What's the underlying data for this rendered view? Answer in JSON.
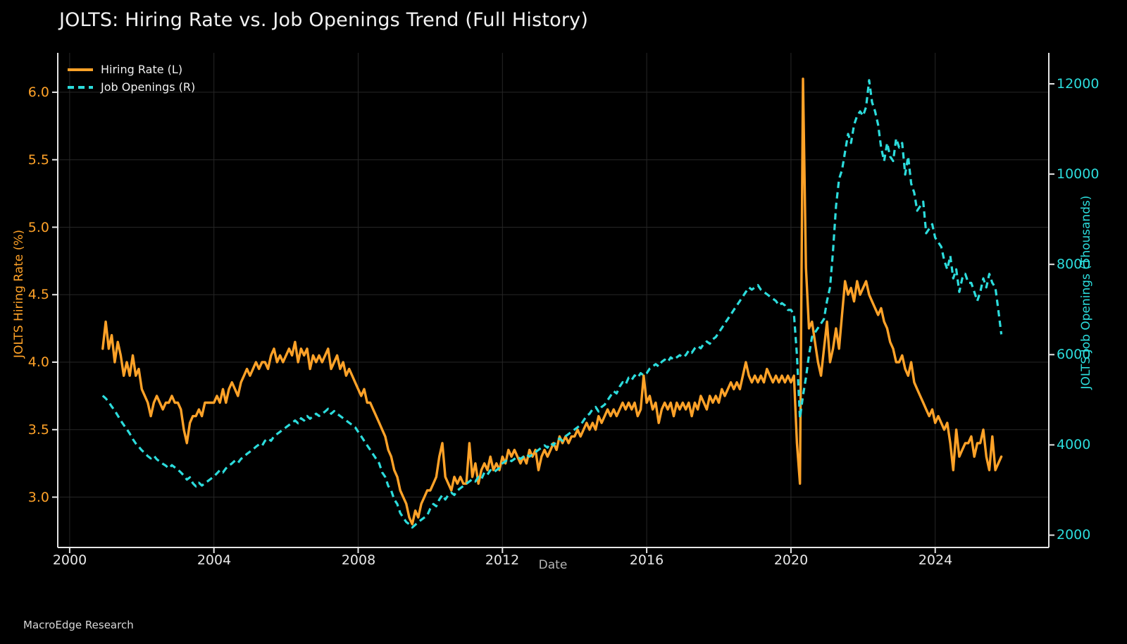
{
  "header": {
    "title": "JOLTS: Hiring Rate vs. Job Openings Trend (Full History)"
  },
  "footer": {
    "watermark": "MacroEdge Research"
  },
  "colors": {
    "background": "#000000",
    "hiring_rate": "#ffa228",
    "job_openings": "#2cdcdc",
    "grid": "#262626",
    "spine": "#e6e6e6",
    "title_text": "#f2f2f2",
    "x_tick_text": "#e8e8e8",
    "muted_text": "#b5b5b5"
  },
  "chart_data": {
    "type": "line",
    "title": "JOLTS: Hiring Rate vs. Job Openings Trend (Full History)",
    "xlabel": "Date",
    "grid": true,
    "legend_position": "upper-left",
    "x_range": [
      1999.67,
      2027.15
    ],
    "x_axis": {
      "label": "Date",
      "ticks": [
        {
          "label": "2000"
        },
        {
          "label": "2004"
        },
        {
          "label": "2008"
        },
        {
          "label": "2012"
        },
        {
          "label": "2016"
        },
        {
          "label": "2020"
        },
        {
          "label": "2024"
        }
      ],
      "tick_values": [
        2000,
        2004,
        2008,
        2012,
        2016,
        2020,
        2024
      ]
    },
    "left_axis": {
      "label": "JOLTS Hiring Rate (%)",
      "range": [
        2.627,
        6.292
      ],
      "ticks": [
        {
          "label": "6.0"
        },
        {
          "label": "5.5"
        },
        {
          "label": "5.0"
        },
        {
          "label": "4.5"
        },
        {
          "label": "4.0"
        },
        {
          "label": "3.5"
        },
        {
          "label": "3.0"
        }
      ],
      "tick_values": [
        6.0,
        5.5,
        5.0,
        4.5,
        4.0,
        3.5,
        3.0
      ]
    },
    "right_axis": {
      "label": "JOLTS Job Openings (Thousands)",
      "range": [
        1727,
        12687
      ],
      "ticks": [
        {
          "label": "12000"
        },
        {
          "label": "10000"
        },
        {
          "label": "8000"
        },
        {
          "label": "6000"
        },
        {
          "label": "4000"
        },
        {
          "label": "2000"
        }
      ],
      "tick_values": [
        12000,
        10000,
        8000,
        6000,
        4000,
        2000
      ]
    },
    "series": [
      {
        "name": "Hiring Rate (L)",
        "axis": "left",
        "style": "solid",
        "color": "#ffa228",
        "width": 3.4,
        "x_start": 2000.9167,
        "x_step_years": 0.0833333,
        "start_month": "2000-12",
        "values": [
          4.1,
          4.3,
          4.1,
          4.2,
          4.0,
          4.15,
          4.05,
          3.9,
          4.0,
          3.9,
          4.05,
          3.9,
          3.95,
          3.8,
          3.75,
          3.7,
          3.6,
          3.7,
          3.75,
          3.7,
          3.65,
          3.7,
          3.7,
          3.75,
          3.7,
          3.7,
          3.65,
          3.5,
          3.4,
          3.55,
          3.6,
          3.6,
          3.65,
          3.6,
          3.7,
          3.7,
          3.7,
          3.7,
          3.75,
          3.7,
          3.8,
          3.7,
          3.8,
          3.85,
          3.8,
          3.75,
          3.85,
          3.9,
          3.95,
          3.9,
          3.95,
          4.0,
          3.95,
          4.0,
          4.0,
          3.95,
          4.05,
          4.1,
          4.0,
          4.05,
          4.0,
          4.05,
          4.1,
          4.05,
          4.15,
          4.0,
          4.1,
          4.05,
          4.1,
          3.95,
          4.05,
          4.0,
          4.05,
          4.0,
          4.05,
          4.1,
          3.95,
          4.0,
          4.05,
          3.95,
          4.0,
          3.9,
          3.95,
          3.9,
          3.85,
          3.8,
          3.75,
          3.8,
          3.7,
          3.7,
          3.65,
          3.6,
          3.55,
          3.5,
          3.45,
          3.35,
          3.3,
          3.2,
          3.15,
          3.05,
          3.0,
          2.95,
          2.85,
          2.8,
          2.9,
          2.85,
          2.95,
          3.0,
          3.05,
          3.05,
          3.1,
          3.15,
          3.3,
          3.4,
          3.15,
          3.1,
          3.05,
          3.15,
          3.1,
          3.15,
          3.1,
          3.1,
          3.4,
          3.15,
          3.25,
          3.1,
          3.2,
          3.25,
          3.2,
          3.3,
          3.2,
          3.25,
          3.2,
          3.3,
          3.25,
          3.35,
          3.3,
          3.35,
          3.3,
          3.25,
          3.3,
          3.25,
          3.35,
          3.3,
          3.35,
          3.2,
          3.3,
          3.35,
          3.3,
          3.35,
          3.4,
          3.35,
          3.45,
          3.4,
          3.45,
          3.4,
          3.45,
          3.45,
          3.5,
          3.45,
          3.5,
          3.55,
          3.5,
          3.55,
          3.5,
          3.6,
          3.55,
          3.6,
          3.65,
          3.6,
          3.65,
          3.6,
          3.65,
          3.7,
          3.65,
          3.7,
          3.65,
          3.7,
          3.6,
          3.65,
          3.9,
          3.7,
          3.75,
          3.65,
          3.7,
          3.55,
          3.65,
          3.7,
          3.65,
          3.7,
          3.6,
          3.7,
          3.65,
          3.7,
          3.65,
          3.7,
          3.6,
          3.7,
          3.65,
          3.75,
          3.7,
          3.65,
          3.75,
          3.7,
          3.75,
          3.7,
          3.8,
          3.75,
          3.8,
          3.85,
          3.8,
          3.85,
          3.8,
          3.9,
          4.0,
          3.9,
          3.85,
          3.9,
          3.85,
          3.9,
          3.85,
          3.95,
          3.9,
          3.85,
          3.9,
          3.85,
          3.9,
          3.85,
          3.9,
          3.85,
          3.9,
          3.4,
          3.1,
          6.1,
          4.7,
          4.25,
          4.3,
          4.15,
          4.0,
          3.9,
          4.1,
          4.3,
          4.0,
          4.1,
          4.25,
          4.1,
          4.35,
          4.6,
          4.5,
          4.55,
          4.45,
          4.6,
          4.5,
          4.55,
          4.6,
          4.5,
          4.45,
          4.4,
          4.35,
          4.4,
          4.3,
          4.25,
          4.15,
          4.1,
          4.0,
          4.0,
          4.05,
          3.95,
          3.9,
          4.0,
          3.85,
          3.8,
          3.75,
          3.7,
          3.65,
          3.6,
          3.65,
          3.55,
          3.6,
          3.55,
          3.5,
          3.55,
          3.4,
          3.2,
          3.5,
          3.3,
          3.35,
          3.4,
          3.4,
          3.45,
          3.3,
          3.4,
          3.4,
          3.5,
          3.3,
          3.2,
          3.45,
          3.2,
          3.25,
          3.3
        ]
      },
      {
        "name": "Job Openings (R)",
        "axis": "right",
        "style": "dashed",
        "color": "#2cdcdc",
        "width": 3.2,
        "x_start": 2000.9167,
        "x_step_years": 0.0833333,
        "start_month": "2000-12",
        "values": [
          5090,
          5030,
          4950,
          4850,
          4760,
          4650,
          4540,
          4440,
          4350,
          4250,
          4130,
          4030,
          3960,
          3880,
          3820,
          3750,
          3700,
          3760,
          3680,
          3630,
          3580,
          3540,
          3480,
          3550,
          3500,
          3450,
          3390,
          3320,
          3230,
          3280,
          3150,
          3080,
          3160,
          3100,
          3150,
          3200,
          3250,
          3300,
          3370,
          3440,
          3390,
          3480,
          3540,
          3590,
          3650,
          3600,
          3690,
          3740,
          3800,
          3850,
          3900,
          3960,
          4010,
          3980,
          4090,
          4140,
          4090,
          4190,
          4240,
          4290,
          4340,
          4390,
          4440,
          4490,
          4540,
          4480,
          4590,
          4540,
          4640,
          4580,
          4640,
          4690,
          4640,
          4690,
          4740,
          4800,
          4690,
          4750,
          4690,
          4640,
          4590,
          4540,
          4490,
          4440,
          4390,
          4290,
          4190,
          4090,
          3990,
          3890,
          3790,
          3690,
          3590,
          3390,
          3290,
          3090,
          2990,
          2790,
          2690,
          2490,
          2390,
          2290,
          2240,
          2170,
          2230,
          2290,
          2340,
          2390,
          2440,
          2590,
          2690,
          2640,
          2790,
          2890,
          2790,
          2890,
          2940,
          2890,
          2990,
          3040,
          3090,
          3140,
          3190,
          3240,
          3190,
          3290,
          3240,
          3390,
          3340,
          3440,
          3390,
          3440,
          3490,
          3590,
          3640,
          3690,
          3640,
          3690,
          3740,
          3690,
          3740,
          3790,
          3740,
          3790,
          3840,
          3890,
          3940,
          3990,
          3940,
          4040,
          3990,
          4090,
          4140,
          4090,
          4190,
          4240,
          4290,
          4340,
          4390,
          4440,
          4540,
          4640,
          4690,
          4790,
          4840,
          4740,
          4840,
          4890,
          4990,
          5090,
          5190,
          5140,
          5290,
          5390,
          5340,
          5490,
          5440,
          5540,
          5490,
          5590,
          5540,
          5590,
          5690,
          5740,
          5790,
          5740,
          5840,
          5890,
          5840,
          5940,
          5890,
          5940,
          5990,
          5940,
          5990,
          6090,
          6040,
          6140,
          6190,
          6140,
          6240,
          6290,
          6240,
          6340,
          6390,
          6490,
          6590,
          6690,
          6790,
          6890,
          6990,
          7090,
          7190,
          7290,
          7390,
          7490,
          7440,
          7490,
          7540,
          7440,
          7390,
          7340,
          7290,
          7240,
          7190,
          7090,
          7140,
          7090,
          6990,
          6990,
          6890,
          5990,
          4590,
          5090,
          5490,
          5990,
          6390,
          6490,
          6590,
          6690,
          6790,
          7190,
          7490,
          8290,
          9290,
          9890,
          10090,
          10490,
          10890,
          10690,
          11090,
          11290,
          11390,
          11290,
          11490,
          12080,
          11590,
          11390,
          11090,
          10590,
          10290,
          10690,
          10390,
          10290,
          10790,
          10590,
          10690,
          9990,
          10390,
          9790,
          9590,
          9190,
          9290,
          9390,
          8690,
          8790,
          8890,
          8590,
          8490,
          8390,
          8090,
          7890,
          8190,
          7690,
          7890,
          7390,
          7690,
          7790,
          7590,
          7590,
          7390,
          7190,
          7390,
          7690,
          7490,
          7790,
          7590,
          7490,
          6990,
          6450
        ]
      }
    ]
  }
}
